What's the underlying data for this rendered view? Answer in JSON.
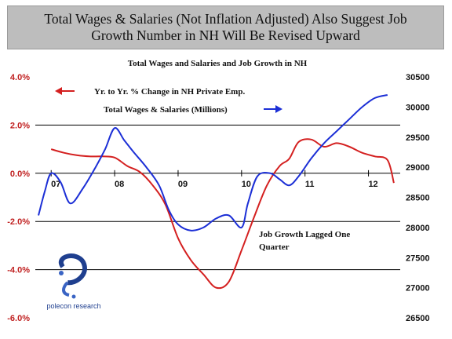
{
  "banner": {
    "line1": "Total Wages & Salaries (Not Inflation Adjusted) Also Suggest Job",
    "line2": "Growth Number in NH Will Be Revised Upward"
  },
  "logo": {
    "text": "polecon research",
    "icon": "polecon-swirl-logo"
  },
  "colors": {
    "emp_series": "#d42020",
    "wages_series": "#1c2fd6",
    "left_axis_text": "#c02020",
    "grid": "#000000"
  },
  "chart_data": {
    "type": "line",
    "title": "Total Wages and Salaries and Job Growth in NH",
    "x_categories": [
      "07",
      "08",
      "09",
      "10",
      "11",
      "12"
    ],
    "x_domain": [
      2006.75,
      2012.5
    ],
    "y_left": {
      "ticks": [
        "4.0%",
        "2.0%",
        "0.0%",
        "-2.0%",
        "-4.0%",
        "-6.0%"
      ],
      "min": -6,
      "max": 4
    },
    "y_right": {
      "ticks": [
        "30500",
        "30000",
        "29500",
        "29000",
        "28500",
        "28000",
        "27500",
        "27000",
        "26500"
      ],
      "min": 26500,
      "max": 30500
    },
    "grid": "horizontal at 2%, -2%, -4%",
    "legend_placement": "top-left",
    "series": [
      {
        "name": "Yr. to Yr. % Change in NH Private Emp.",
        "axis": "left",
        "x": [
          2007.0,
          2007.2,
          2007.4,
          2007.6,
          2007.8,
          2008.0,
          2008.2,
          2008.4,
          2008.6,
          2008.8,
          2009.0,
          2009.2,
          2009.4,
          2009.6,
          2009.8,
          2010.0,
          2010.2,
          2010.4,
          2010.6,
          2010.75,
          2010.9,
          2011.1,
          2011.3,
          2011.5,
          2011.7,
          2011.9,
          2012.1,
          2012.3,
          2012.4
        ],
        "values": [
          1.0,
          0.85,
          0.75,
          0.7,
          0.7,
          0.65,
          0.3,
          0.05,
          -0.5,
          -1.3,
          -2.7,
          -3.6,
          -4.2,
          -4.75,
          -4.5,
          -3.2,
          -1.8,
          -0.5,
          0.3,
          0.6,
          1.3,
          1.4,
          1.1,
          1.25,
          1.1,
          0.85,
          0.7,
          0.55,
          -0.4
        ]
      },
      {
        "name": "Total Wages & Salaries (Millions)",
        "axis": "right",
        "x": [
          2006.8,
          2006.9,
          2007.0,
          2007.15,
          2007.3,
          2007.5,
          2007.7,
          2007.85,
          2008.0,
          2008.15,
          2008.3,
          2008.5,
          2008.7,
          2008.85,
          2009.0,
          2009.2,
          2009.4,
          2009.6,
          2009.8,
          2010.0,
          2010.1,
          2010.25,
          2010.45,
          2010.6,
          2010.75,
          2010.9,
          2011.1,
          2011.3,
          2011.5,
          2011.7,
          2011.9,
          2012.1,
          2012.3
        ],
        "values": [
          28200,
          28600,
          28900,
          28750,
          28400,
          28650,
          29000,
          29300,
          29650,
          29450,
          29250,
          29000,
          28700,
          28300,
          28050,
          27950,
          28000,
          28150,
          28200,
          28000,
          28400,
          28850,
          28900,
          28800,
          28700,
          28850,
          29150,
          29400,
          29600,
          29800,
          30000,
          30150,
          30200
        ]
      }
    ],
    "annotations": [
      "Job Growth Lagged One",
      "Quarter"
    ]
  }
}
